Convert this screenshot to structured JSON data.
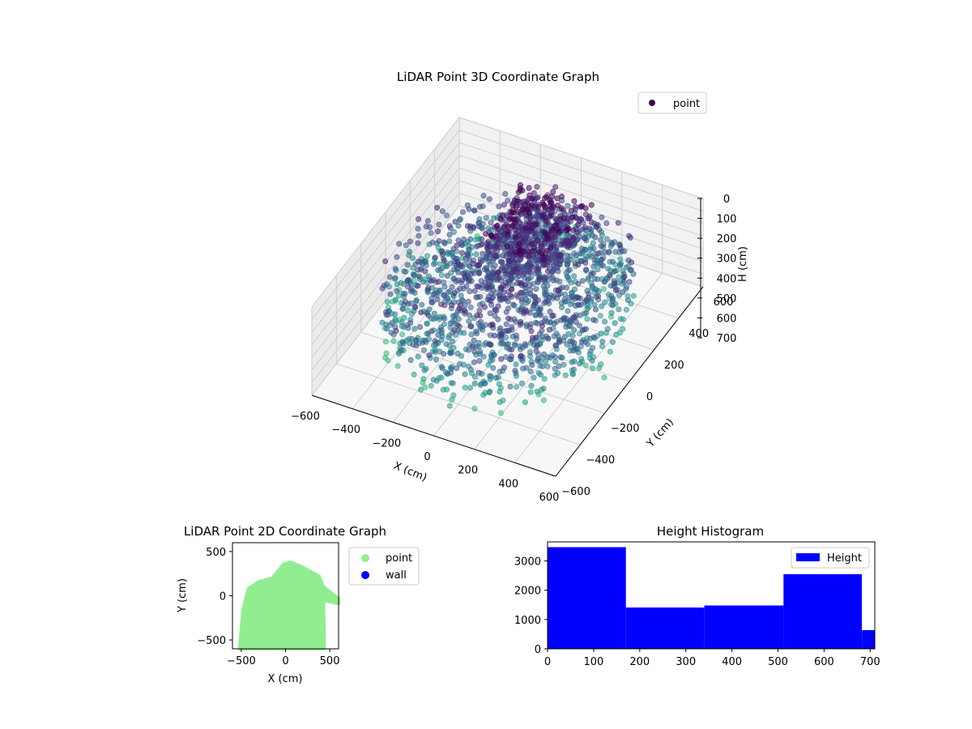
{
  "chart_data": [
    {
      "type": "scatter",
      "projection": "3d",
      "title": "LiDAR Point 3D Coordinate Graph",
      "xlabel": "X (cm)",
      "ylabel": "Y (cm)",
      "zlabel": "H (cm)",
      "xlim": [
        -600,
        600
      ],
      "ylim": [
        -600,
        600
      ],
      "zlim": [
        700,
        0
      ],
      "xticks": [
        "−600",
        "−400",
        "−200",
        "0",
        "200",
        "400",
        "600"
      ],
      "yticks": [
        "−600",
        "−400",
        "−200",
        "0",
        "200",
        "400",
        "600"
      ],
      "zticks": [
        "0",
        "100",
        "200",
        "300",
        "400",
        "500",
        "600",
        "700"
      ],
      "colormap": "viridis",
      "grid": true,
      "legend": {
        "placement": "upper-right",
        "entries": [
          {
            "name": "point",
            "color": "#440154"
          }
        ]
      },
      "series": [
        {
          "name": "point",
          "note": "point cloud colored by height"
        }
      ]
    },
    {
      "type": "scatter",
      "title": "LiDAR Point 2D Coordinate Graph",
      "xlabel": "X (cm)",
      "ylabel": "Y (cm)",
      "xlim": [
        -600,
        600
      ],
      "ylim": [
        -600,
        600
      ],
      "xticks": [
        -500,
        0,
        500
      ],
      "yticks": [
        -500,
        0,
        500
      ],
      "legend": {
        "placement": "outside-right",
        "entries": [
          {
            "name": "point",
            "color": "#90ee90"
          },
          {
            "name": "wall",
            "color": "#0000ff"
          }
        ]
      },
      "series": [
        {
          "name": "point",
          "color": "#90ee90"
        },
        {
          "name": "wall",
          "color": "#0000ff"
        }
      ]
    },
    {
      "type": "bar",
      "subtype": "histogram",
      "title": "Height Histogram",
      "xlabel": "",
      "ylabel": "",
      "xlim": [
        0,
        710
      ],
      "ylim": [
        0,
        3650
      ],
      "xticks": [
        0,
        100,
        200,
        300,
        400,
        500,
        600,
        700
      ],
      "yticks": [
        0,
        1000,
        2000,
        3000
      ],
      "bin_edges": [
        0,
        170,
        340,
        512,
        682,
        710
      ],
      "values": [
        3470,
        1410,
        1480,
        2550,
        640
      ],
      "color": "#0000ff",
      "legend": {
        "placement": "upper-right",
        "entries": [
          {
            "name": "Height",
            "color": "#0000ff"
          }
        ]
      }
    }
  ]
}
